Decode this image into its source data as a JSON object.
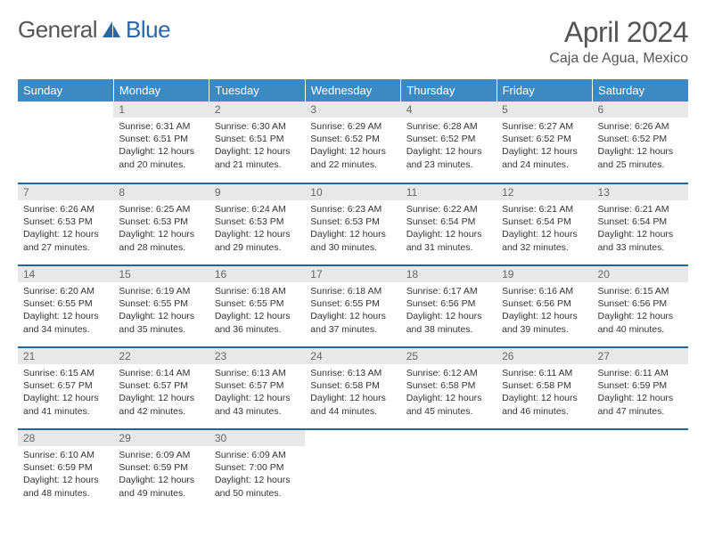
{
  "logo": {
    "text1": "General",
    "text2": "Blue"
  },
  "title": "April 2024",
  "location": "Caja de Agua, Mexico",
  "colors": {
    "header_bg": "#3b8ac4",
    "header_text": "#ffffff",
    "row_border": "#226699",
    "daynum_bg": "#e8e8e8",
    "daynum_text": "#666666",
    "body_text": "#333333",
    "title_text": "#555555",
    "logo_gray": "#555555",
    "logo_blue": "#2968a8"
  },
  "weekdays": [
    "Sunday",
    "Monday",
    "Tuesday",
    "Wednesday",
    "Thursday",
    "Friday",
    "Saturday"
  ],
  "weeks": [
    [
      {
        "day": "",
        "sunrise": "",
        "sunset": "",
        "daylight": ""
      },
      {
        "day": "1",
        "sunrise": "Sunrise: 6:31 AM",
        "sunset": "Sunset: 6:51 PM",
        "daylight": "Daylight: 12 hours and 20 minutes."
      },
      {
        "day": "2",
        "sunrise": "Sunrise: 6:30 AM",
        "sunset": "Sunset: 6:51 PM",
        "daylight": "Daylight: 12 hours and 21 minutes."
      },
      {
        "day": "3",
        "sunrise": "Sunrise: 6:29 AM",
        "sunset": "Sunset: 6:52 PM",
        "daylight": "Daylight: 12 hours and 22 minutes."
      },
      {
        "day": "4",
        "sunrise": "Sunrise: 6:28 AM",
        "sunset": "Sunset: 6:52 PM",
        "daylight": "Daylight: 12 hours and 23 minutes."
      },
      {
        "day": "5",
        "sunrise": "Sunrise: 6:27 AM",
        "sunset": "Sunset: 6:52 PM",
        "daylight": "Daylight: 12 hours and 24 minutes."
      },
      {
        "day": "6",
        "sunrise": "Sunrise: 6:26 AM",
        "sunset": "Sunset: 6:52 PM",
        "daylight": "Daylight: 12 hours and 25 minutes."
      }
    ],
    [
      {
        "day": "7",
        "sunrise": "Sunrise: 6:26 AM",
        "sunset": "Sunset: 6:53 PM",
        "daylight": "Daylight: 12 hours and 27 minutes."
      },
      {
        "day": "8",
        "sunrise": "Sunrise: 6:25 AM",
        "sunset": "Sunset: 6:53 PM",
        "daylight": "Daylight: 12 hours and 28 minutes."
      },
      {
        "day": "9",
        "sunrise": "Sunrise: 6:24 AM",
        "sunset": "Sunset: 6:53 PM",
        "daylight": "Daylight: 12 hours and 29 minutes."
      },
      {
        "day": "10",
        "sunrise": "Sunrise: 6:23 AM",
        "sunset": "Sunset: 6:53 PM",
        "daylight": "Daylight: 12 hours and 30 minutes."
      },
      {
        "day": "11",
        "sunrise": "Sunrise: 6:22 AM",
        "sunset": "Sunset: 6:54 PM",
        "daylight": "Daylight: 12 hours and 31 minutes."
      },
      {
        "day": "12",
        "sunrise": "Sunrise: 6:21 AM",
        "sunset": "Sunset: 6:54 PM",
        "daylight": "Daylight: 12 hours and 32 minutes."
      },
      {
        "day": "13",
        "sunrise": "Sunrise: 6:21 AM",
        "sunset": "Sunset: 6:54 PM",
        "daylight": "Daylight: 12 hours and 33 minutes."
      }
    ],
    [
      {
        "day": "14",
        "sunrise": "Sunrise: 6:20 AM",
        "sunset": "Sunset: 6:55 PM",
        "daylight": "Daylight: 12 hours and 34 minutes."
      },
      {
        "day": "15",
        "sunrise": "Sunrise: 6:19 AM",
        "sunset": "Sunset: 6:55 PM",
        "daylight": "Daylight: 12 hours and 35 minutes."
      },
      {
        "day": "16",
        "sunrise": "Sunrise: 6:18 AM",
        "sunset": "Sunset: 6:55 PM",
        "daylight": "Daylight: 12 hours and 36 minutes."
      },
      {
        "day": "17",
        "sunrise": "Sunrise: 6:18 AM",
        "sunset": "Sunset: 6:55 PM",
        "daylight": "Daylight: 12 hours and 37 minutes."
      },
      {
        "day": "18",
        "sunrise": "Sunrise: 6:17 AM",
        "sunset": "Sunset: 6:56 PM",
        "daylight": "Daylight: 12 hours and 38 minutes."
      },
      {
        "day": "19",
        "sunrise": "Sunrise: 6:16 AM",
        "sunset": "Sunset: 6:56 PM",
        "daylight": "Daylight: 12 hours and 39 minutes."
      },
      {
        "day": "20",
        "sunrise": "Sunrise: 6:15 AM",
        "sunset": "Sunset: 6:56 PM",
        "daylight": "Daylight: 12 hours and 40 minutes."
      }
    ],
    [
      {
        "day": "21",
        "sunrise": "Sunrise: 6:15 AM",
        "sunset": "Sunset: 6:57 PM",
        "daylight": "Daylight: 12 hours and 41 minutes."
      },
      {
        "day": "22",
        "sunrise": "Sunrise: 6:14 AM",
        "sunset": "Sunset: 6:57 PM",
        "daylight": "Daylight: 12 hours and 42 minutes."
      },
      {
        "day": "23",
        "sunrise": "Sunrise: 6:13 AM",
        "sunset": "Sunset: 6:57 PM",
        "daylight": "Daylight: 12 hours and 43 minutes."
      },
      {
        "day": "24",
        "sunrise": "Sunrise: 6:13 AM",
        "sunset": "Sunset: 6:58 PM",
        "daylight": "Daylight: 12 hours and 44 minutes."
      },
      {
        "day": "25",
        "sunrise": "Sunrise: 6:12 AM",
        "sunset": "Sunset: 6:58 PM",
        "daylight": "Daylight: 12 hours and 45 minutes."
      },
      {
        "day": "26",
        "sunrise": "Sunrise: 6:11 AM",
        "sunset": "Sunset: 6:58 PM",
        "daylight": "Daylight: 12 hours and 46 minutes."
      },
      {
        "day": "27",
        "sunrise": "Sunrise: 6:11 AM",
        "sunset": "Sunset: 6:59 PM",
        "daylight": "Daylight: 12 hours and 47 minutes."
      }
    ],
    [
      {
        "day": "28",
        "sunrise": "Sunrise: 6:10 AM",
        "sunset": "Sunset: 6:59 PM",
        "daylight": "Daylight: 12 hours and 48 minutes."
      },
      {
        "day": "29",
        "sunrise": "Sunrise: 6:09 AM",
        "sunset": "Sunset: 6:59 PM",
        "daylight": "Daylight: 12 hours and 49 minutes."
      },
      {
        "day": "30",
        "sunrise": "Sunrise: 6:09 AM",
        "sunset": "Sunset: 7:00 PM",
        "daylight": "Daylight: 12 hours and 50 minutes."
      },
      {
        "day": "",
        "sunrise": "",
        "sunset": "",
        "daylight": ""
      },
      {
        "day": "",
        "sunrise": "",
        "sunset": "",
        "daylight": ""
      },
      {
        "day": "",
        "sunrise": "",
        "sunset": "",
        "daylight": ""
      },
      {
        "day": "",
        "sunrise": "",
        "sunset": "",
        "daylight": ""
      }
    ]
  ]
}
